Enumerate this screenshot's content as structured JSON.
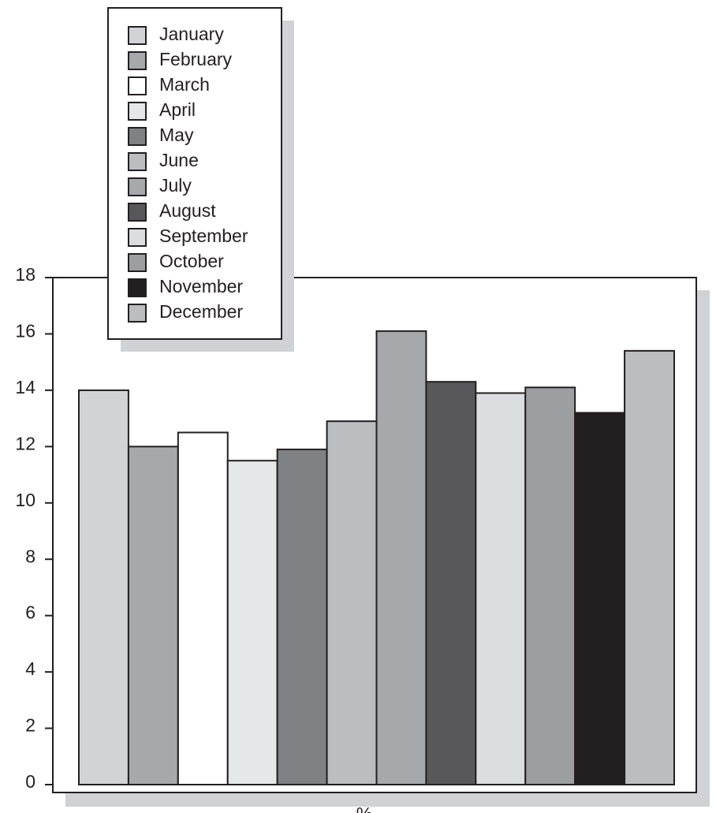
{
  "chart_data": {
    "type": "bar",
    "xlabel": "%",
    "series": [
      {
        "name": "January",
        "color": "#d2d3d5",
        "values": [
          14.0
        ]
      },
      {
        "name": "February",
        "color": "#a7a8ab",
        "values": [
          12.0
        ]
      },
      {
        "name": "March",
        "color": "#ffffff",
        "values": [
          12.5
        ]
      },
      {
        "name": "April",
        "color": "#e6e7e8",
        "values": [
          11.5
        ]
      },
      {
        "name": "May",
        "color": "#808184",
        "values": [
          11.9
        ]
      },
      {
        "name": "June",
        "color": "#bcbdc0",
        "values": [
          12.9
        ]
      },
      {
        "name": "July",
        "color": "#a7a8ab",
        "values": [
          16.1
        ]
      },
      {
        "name": "August",
        "color": "#58585a",
        "values": [
          14.3
        ]
      },
      {
        "name": "September",
        "color": "#dcdddf",
        "values": [
          13.9
        ]
      },
      {
        "name": "October",
        "color": "#9d9ea1",
        "values": [
          14.1
        ]
      },
      {
        "name": "November",
        "color": "#231f20",
        "values": [
          13.2
        ]
      },
      {
        "name": "December",
        "color": "#bcbdc0",
        "values": [
          15.4
        ]
      }
    ],
    "ylim": [
      0,
      18
    ],
    "yticks": [
      0,
      2,
      4,
      6,
      8,
      10,
      12,
      14,
      16,
      18
    ],
    "legend": "top-left"
  }
}
